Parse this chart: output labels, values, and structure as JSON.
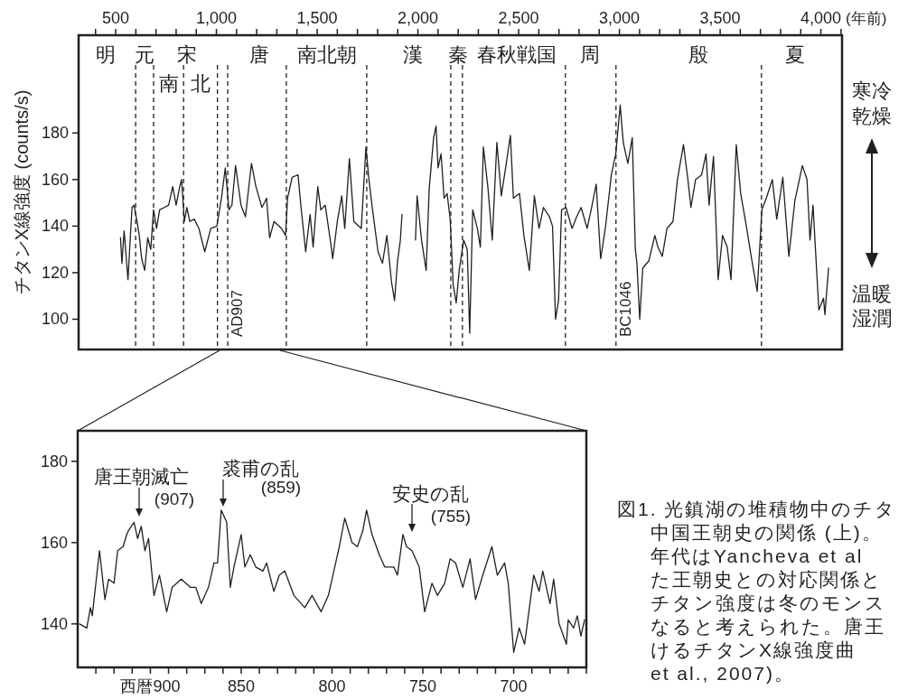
{
  "chart_data": [
    {
      "type": "line",
      "xlabel": "(年前)",
      "ylabel": "チタンX線強度 (counts/s)",
      "series": [
        {
          "color": "#231f20",
          "x": [
            524,
            531,
            542,
            561,
            581,
            591,
            606,
            617,
            629,
            644,
            659,
            674,
            688,
            703,
            718,
            741,
            763,
            783,
            800,
            818,
            827,
            841,
            853,
            868,
            890,
            913,
            942,
            972,
            1002,
            1025,
            1044,
            1062,
            1077,
            1095,
            1122,
            1144,
            1174,
            1196,
            1226,
            1249,
            1264,
            1286,
            1323,
            1343,
            1353,
            1376,
            1405,
            1420,
            1443,
            1465,
            1480,
            1503,
            1518,
            1540,
            1570,
            1577,
            1600,
            1622,
            1637,
            1660,
            1682,
            1719,
            1742,
            1757,
            1772,
            1802,
            1824,
            1846,
            1869,
            1884,
            1899,
            1913,
            1921
          ],
          "values": [
            135,
            124,
            138,
            117,
            148,
            149,
            142,
            136,
            126,
            121,
            135,
            130,
            147,
            139,
            147,
            148,
            149,
            157,
            149,
            157,
            160,
            142,
            148,
            142,
            143,
            139,
            129,
            139,
            140,
            152,
            165,
            147,
            149,
            166,
            149,
            144,
            167,
            157,
            148,
            152,
            135,
            142,
            139,
            136,
            152,
            161,
            162,
            148,
            129,
            145,
            131,
            157,
            147,
            149,
            131,
            126,
            142,
            153,
            139,
            169,
            142,
            139,
            174,
            160,
            149,
            129,
            124,
            136,
            116,
            108,
            125,
            134,
            145
          ]
        },
        {
          "color": "#231f20",
          "x": [
            1988,
            1996,
            2018,
            2041,
            2056,
            2078,
            2090,
            2100,
            2115,
            2130,
            2145,
            2160,
            2175,
            2190,
            2205,
            2227,
            2245,
            2257,
            2272,
            2295,
            2310,
            2325,
            2347,
            2369,
            2392,
            2414,
            2437,
            2459,
            2474,
            2504,
            2526,
            2553,
            2578,
            2601,
            2623,
            2653,
            2668,
            2683,
            2698,
            2713,
            2735,
            2765,
            2788,
            2810,
            2840,
            2862,
            2885,
            2907,
            2930,
            2960,
            2982,
            3004,
            3019,
            3042,
            3064,
            3079,
            3087,
            3101,
            3116,
            3146,
            3176,
            3191,
            3213,
            3236,
            3266,
            3288,
            3318,
            3340,
            3355,
            3378,
            3408,
            3430,
            3445,
            3467,
            3490,
            3512,
            3535,
            3554,
            3580,
            3602,
            3632,
            3654,
            3684,
            3707,
            3729,
            3759,
            3781,
            3811,
            3841,
            3871,
            3908,
            3931,
            3946,
            3961,
            3975,
            3990,
            4013,
            4020,
            4038
          ],
          "values": [
            134,
            153,
            134,
            121,
            156,
            178,
            183,
            165,
            171,
            152,
            154,
            143,
            115,
            107,
            121,
            134,
            130,
            94,
            147,
            139,
            131,
            174,
            157,
            134,
            176,
            153,
            166,
            179,
            152,
            154,
            136,
            121,
            153,
            139,
            148,
            144,
            140,
            100,
            108,
            147,
            148,
            139,
            144,
            148,
            139,
            148,
            158,
            126,
            139,
            162,
            171,
            192,
            176,
            167,
            178,
            130,
            124,
            100,
            122,
            125,
            136,
            131,
            127,
            139,
            142,
            160,
            175,
            160,
            148,
            160,
            162,
            171,
            149,
            170,
            117,
            136,
            131,
            117,
            175,
            154,
            139,
            127,
            112,
            147,
            152,
            160,
            143,
            161,
            127,
            151,
            166,
            160,
            134,
            149,
            127,
            104,
            109,
            102,
            122
          ]
        }
      ],
      "xlim": [
        316,
        4105
      ],
      "xticks": [
        {
          "value": 400,
          "label": null
        },
        500,
        {
          "value": 600,
          "label": null
        },
        {
          "value": 700,
          "label": null
        },
        {
          "value": 800,
          "label": null
        },
        {
          "value": 900,
          "label": null
        },
        {
          "value": 1000,
          "label": "1,000"
        },
        {
          "value": 1100,
          "label": null
        },
        {
          "value": 1200,
          "label": null
        },
        {
          "value": 1300,
          "label": null
        },
        {
          "value": 1400,
          "label": null
        },
        {
          "value": 1500,
          "label": "1,500"
        },
        {
          "value": 1600,
          "label": null
        },
        {
          "value": 1700,
          "label": null
        },
        {
          "value": 1800,
          "label": null
        },
        {
          "value": 1900,
          "label": null
        },
        {
          "value": 2000,
          "label": "2,000"
        },
        {
          "value": 2100,
          "label": null
        },
        {
          "value": 2200,
          "label": null
        },
        {
          "value": 2300,
          "label": null
        },
        {
          "value": 2400,
          "label": null
        },
        {
          "value": 2500,
          "label": "2,500"
        },
        {
          "value": 2600,
          "label": null
        },
        {
          "value": 2700,
          "label": null
        },
        {
          "value": 2800,
          "label": null
        },
        {
          "value": 2900,
          "label": null
        },
        {
          "value": 3000,
          "label": "3,000"
        },
        {
          "value": 3100,
          "label": null
        },
        {
          "value": 3200,
          "label": null
        },
        {
          "value": 3300,
          "label": null
        },
        {
          "value": 3400,
          "label": null
        },
        {
          "value": 3500,
          "label": "3,500"
        },
        {
          "value": 3600,
          "label": null
        },
        {
          "value": 3700,
          "label": null
        },
        {
          "value": 3800,
          "label": null
        },
        {
          "value": 3900,
          "label": null
        },
        {
          "value": 4000,
          "label": "4,000"
        },
        {
          "value": 4100,
          "label": null
        }
      ],
      "ylim": [
        87,
        222
      ],
      "yticks": [
        100,
        120,
        140,
        160,
        180
      ],
      "ref_lines": [
        {
          "axis": "x",
          "value": 599,
          "line_style": "dashed"
        },
        {
          "axis": "x",
          "value": 688,
          "line_style": "dashed"
        },
        {
          "axis": "x",
          "value": 837,
          "line_style": "dashed"
        },
        {
          "axis": "x",
          "value": 1005,
          "line_style": "dashed"
        },
        {
          "axis": "x",
          "value": 1056,
          "label": "AD907",
          "line_style": "dashed"
        },
        {
          "axis": "x",
          "value": 1347,
          "line_style": "dashed"
        },
        {
          "axis": "x",
          "value": 1746,
          "line_style": "dashed"
        },
        {
          "axis": "x",
          "value": 2163,
          "line_style": "dashed"
        },
        {
          "axis": "x",
          "value": 2221,
          "line_style": "dashed"
        },
        {
          "axis": "x",
          "value": 2732,
          "line_style": "dashed"
        },
        {
          "axis": "x",
          "value": 2983,
          "label": "BC1046",
          "line_style": "dashed"
        },
        {
          "axis": "x",
          "value": 3705,
          "line_style": "dashed"
        }
      ],
      "annotations": [
        "明",
        "元",
        "宋",
        "南",
        "北",
        "唐",
        "南北朝",
        "漢",
        "秦",
        "春秋戦国",
        "周",
        "殷",
        "夏",
        "寒冷",
        "乾燥",
        "温暖",
        "湿潤"
      ]
    },
    {
      "type": "line",
      "x": [
        939,
        935,
        933,
        932,
        928,
        925,
        923,
        920,
        918,
        915,
        913,
        912,
        909,
        907,
        905,
        903,
        901,
        898,
        895,
        891,
        888,
        883,
        878,
        875,
        872,
        868,
        865,
        863,
        861,
        858,
        856,
        854,
        850,
        848,
        845,
        842,
        838,
        836,
        832,
        829,
        826,
        821,
        815,
        811,
        806,
        802,
        798,
        796,
        793,
        789,
        786,
        783,
        781,
        778,
        774,
        771,
        766,
        764,
        761,
        759,
        756,
        752,
        749,
        745,
        742,
        738,
        735,
        732,
        728,
        724,
        721,
        717,
        712,
        709,
        705,
        703,
        700,
        697,
        694,
        689,
        686,
        684,
        680,
        678,
        675,
        671,
        670,
        667,
        665,
        663,
        661
      ],
      "series": [
        {
          "color": "#231f20",
          "values": [
            140,
            139,
            144,
            142,
            158,
            146,
            151,
            150,
            158,
            159,
            162,
            163,
            165,
            161,
            164,
            158,
            161,
            147,
            152,
            143,
            149,
            151,
            149,
            149,
            145,
            149,
            155,
            155,
            168,
            165,
            149,
            154,
            162,
            154,
            157,
            154,
            153,
            155,
            148,
            152,
            153,
            147,
            144,
            147,
            143,
            147,
            155,
            159,
            166,
            160,
            159,
            163,
            168,
            162,
            157,
            154,
            154,
            152,
            162,
            159,
            158,
            154,
            143,
            150,
            147,
            150,
            156,
            155,
            149,
            156,
            146,
            152,
            159,
            152,
            155,
            150,
            133,
            139,
            135,
            152,
            148,
            153,
            145,
            151,
            140,
            135,
            141,
            139,
            142,
            137,
            141
          ]
        }
      ],
      "xlim": [
        940,
        660
      ],
      "xticks": [
        {
          "value": 930,
          "label": null
        },
        {
          "value": 920,
          "label": null
        },
        {
          "value": 910,
          "label": null
        },
        {
          "value": 900,
          "label": "西暦900"
        },
        {
          "value": 890,
          "label": null
        },
        {
          "value": 880,
          "label": null
        },
        {
          "value": 870,
          "label": null
        },
        {
          "value": 860,
          "label": null
        },
        850,
        {
          "value": 840,
          "label": null
        },
        {
          "value": 830,
          "label": null
        },
        {
          "value": 820,
          "label": null
        },
        {
          "value": 810,
          "label": null
        },
        800,
        {
          "value": 790,
          "label": null
        },
        {
          "value": 780,
          "label": null
        },
        {
          "value": 770,
          "label": null
        },
        {
          "value": 760,
          "label": null
        },
        750,
        {
          "value": 740,
          "label": null
        },
        {
          "value": 730,
          "label": null
        },
        {
          "value": 720,
          "label": null
        },
        {
          "value": 710,
          "label": null
        },
        700,
        {
          "value": 690,
          "label": null
        },
        {
          "value": 680,
          "label": null
        },
        {
          "value": 670,
          "label": null
        },
        {
          "value": 660,
          "label": null
        }
      ],
      "ylim": [
        129.3,
        187.5
      ],
      "yticks": [
        140,
        160,
        180
      ],
      "annotations": [
        "唐王朝滅亡",
        "(907)",
        "裘甫の乱",
        "(859)",
        "安史の乱",
        "(755)",
        "図1. 光鎮湖の堆積物中のチタ",
        "中国王朝史の関係 (上)。",
        "年代はYancheva et al",
        "た王朝史との対応関係と",
        "チタン強度は冬のモンス",
        "なると考えられた。唐王",
        "けるチタンX線強度曲",
        "et al., 2007)。"
      ]
    }
  ]
}
